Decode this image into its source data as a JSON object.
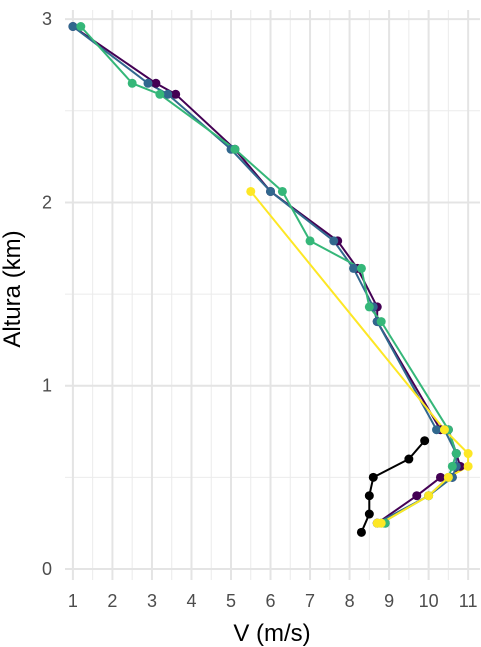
{
  "chart_data": {
    "type": "line",
    "title": "",
    "xlabel": "V (m/s)",
    "ylabel": "Altura (km)",
    "xlim": [
      0.8,
      11.3
    ],
    "ylim": [
      -0.06,
      3.05
    ],
    "x_ticks": [
      1,
      2,
      3,
      4,
      5,
      6,
      7,
      8,
      9,
      10,
      11
    ],
    "y_ticks": [
      0,
      1,
      2,
      3
    ],
    "grid": true,
    "legend": "none",
    "series": [
      {
        "color": "#440154",
        "points": [
          [
            1.0,
            2.96
          ],
          [
            3.1,
            2.65
          ],
          [
            3.6,
            2.59
          ],
          [
            5.1,
            2.29
          ],
          [
            6.0,
            2.06
          ],
          [
            7.7,
            1.79
          ],
          [
            8.2,
            1.64
          ],
          [
            8.7,
            1.43
          ],
          [
            8.7,
            1.35
          ],
          [
            10.3,
            0.76
          ],
          [
            10.5,
            0.76
          ],
          [
            10.7,
            0.63
          ],
          [
            10.8,
            0.56
          ],
          [
            10.6,
            0.5
          ],
          [
            10.3,
            0.5
          ],
          [
            9.7,
            0.4
          ],
          [
            8.7,
            0.25
          ],
          [
            8.9,
            0.25
          ]
        ]
      },
      {
        "color": "#31688E",
        "points": [
          [
            1.0,
            2.96
          ],
          [
            2.9,
            2.65
          ],
          [
            3.4,
            2.59
          ],
          [
            5.0,
            2.29
          ],
          [
            6.0,
            2.06
          ],
          [
            7.6,
            1.79
          ],
          [
            8.1,
            1.64
          ],
          [
            8.6,
            1.43
          ],
          [
            8.7,
            1.35
          ],
          [
            10.2,
            0.76
          ],
          [
            10.4,
            0.76
          ],
          [
            10.7,
            0.63
          ],
          [
            10.7,
            0.56
          ],
          [
            10.6,
            0.5
          ],
          [
            10.0,
            0.4
          ],
          [
            8.7,
            0.25
          ],
          [
            8.9,
            0.25
          ]
        ]
      },
      {
        "color": "#35B779",
        "points": [
          [
            1.2,
            2.96
          ],
          [
            2.5,
            2.65
          ],
          [
            3.2,
            2.59
          ],
          [
            5.1,
            2.29
          ],
          [
            6.3,
            2.06
          ],
          [
            7.0,
            1.79
          ],
          [
            8.3,
            1.64
          ],
          [
            8.5,
            1.43
          ],
          [
            8.8,
            1.35
          ],
          [
            10.5,
            0.76
          ],
          [
            10.7,
            0.63
          ],
          [
            10.6,
            0.56
          ],
          [
            10.5,
            0.5
          ],
          [
            10.0,
            0.4
          ],
          [
            8.8,
            0.25
          ],
          [
            8.9,
            0.25
          ]
        ]
      },
      {
        "color": "#FDE725",
        "points": [
          [
            5.5,
            2.06
          ],
          [
            10.4,
            0.76
          ],
          [
            11.0,
            0.63
          ],
          [
            11.0,
            0.56
          ],
          [
            10.5,
            0.5
          ],
          [
            10.0,
            0.4
          ],
          [
            8.8,
            0.25
          ],
          [
            8.7,
            0.25
          ]
        ]
      },
      {
        "color": "#000000",
        "points": [
          [
            8.3,
            0.2
          ],
          [
            8.5,
            0.3
          ],
          [
            8.5,
            0.4
          ],
          [
            8.6,
            0.5
          ],
          [
            9.5,
            0.6
          ],
          [
            9.9,
            0.7
          ]
        ]
      }
    ]
  }
}
